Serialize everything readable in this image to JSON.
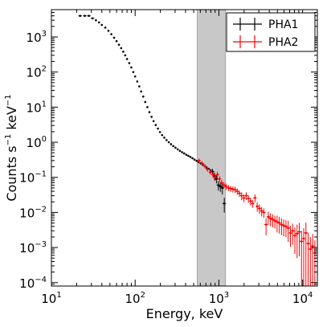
{
  "chart_data": {
    "type": "scatter",
    "title": "",
    "xlabel": "Energy, keV",
    "ylabel_parts": [
      "Counts s",
      "−1",
      " keV",
      "−1"
    ],
    "xscale": "log",
    "yscale": "log",
    "xlim": [
      10,
      15000
    ],
    "ylim": [
      8e-05,
      6000
    ],
    "x_ticks": [
      {
        "base": "10",
        "exp": "1"
      },
      {
        "base": "10",
        "exp": "2"
      },
      {
        "base": "10",
        "exp": "3"
      },
      {
        "base": "10",
        "exp": "4"
      }
    ],
    "y_ticks": [
      {
        "base": "10",
        "exp": "−4"
      },
      {
        "base": "10",
        "exp": "−3"
      },
      {
        "base": "10",
        "exp": "−2"
      },
      {
        "base": "10",
        "exp": "−1"
      },
      {
        "base": "10",
        "exp": "0"
      },
      {
        "base": "10",
        "exp": "1"
      },
      {
        "base": "10",
        "exp": "2"
      },
      {
        "base": "10",
        "exp": "3"
      }
    ],
    "x_tick_values": [
      10,
      100,
      1000,
      10000
    ],
    "y_tick_values": [
      0.0001,
      0.001,
      0.01,
      0.1,
      1,
      10,
      100,
      1000
    ],
    "shaded_band": {
      "x0": 550,
      "x1": 1200,
      "color": "#c8c8c8"
    },
    "legend": {
      "placement": "top-right"
    },
    "series": [
      {
        "name": "PHA1",
        "color": "#000000",
        "points": [
          [
            22,
            4000
          ],
          [
            25,
            4000
          ],
          [
            28,
            4000
          ],
          [
            31,
            3400
          ],
          [
            34,
            3000
          ],
          [
            37,
            2600
          ],
          [
            40,
            2200
          ],
          [
            44,
            1850
          ],
          [
            48,
            1500
          ],
          [
            52,
            1200
          ],
          [
            56,
            950
          ],
          [
            60,
            760
          ],
          [
            64,
            600
          ],
          [
            68,
            480
          ],
          [
            72,
            380
          ],
          [
            76,
            300
          ],
          [
            80,
            235
          ],
          [
            85,
            180
          ],
          [
            90,
            135
          ],
          [
            95,
            100
          ],
          [
            100,
            75
          ],
          [
            106,
            54
          ],
          [
            112,
            39
          ],
          [
            118,
            28
          ],
          [
            125,
            20
          ],
          [
            132,
            14
          ],
          [
            140,
            10
          ],
          [
            148,
            7.2
          ],
          [
            157,
            5.3
          ],
          [
            166,
            4
          ],
          [
            176,
            3.1
          ],
          [
            187,
            2.45
          ],
          [
            198,
            1.95
          ],
          [
            210,
            1.6
          ],
          [
            223,
            1.35
          ],
          [
            237,
            1.15
          ],
          [
            252,
            1
          ],
          [
            268,
            0.88
          ],
          [
            285,
            0.78
          ],
          [
            303,
            0.7
          ],
          [
            322,
            0.63
          ],
          [
            342,
            0.57
          ],
          [
            363,
            0.52
          ],
          [
            385,
            0.48
          ],
          [
            408,
            0.44
          ],
          [
            432,
            0.41
          ],
          [
            457,
            0.38
          ],
          [
            484,
            0.35
          ],
          [
            512,
            0.32
          ],
          [
            542,
            0.295
          ],
          [
            573,
            0.27
          ],
          [
            606,
            0.25
          ],
          [
            640,
            0.23
          ],
          [
            676,
            0.21
          ],
          [
            714,
            0.19
          ],
          [
            754,
            0.175
          ],
          [
            796,
            0.16
          ],
          [
            840,
            0.145
          ],
          [
            887,
            0.11
          ],
          [
            935,
            0.09
          ],
          [
            985,
            0.06
          ],
          [
            1040,
            0.055
          ],
          [
            1100,
            0.05
          ],
          [
            1160,
            0.018
          ]
        ],
        "yerr": [
          [
            22,
            0.04
          ],
          [
            25,
            0.04
          ],
          [
            28,
            0.04
          ],
          [
            31,
            0.04
          ],
          [
            840,
            0.2
          ],
          [
            887,
            0.25
          ],
          [
            935,
            0.25
          ],
          [
            985,
            0.3
          ],
          [
            1040,
            0.3
          ],
          [
            1100,
            0.35
          ],
          [
            1160,
            0.45
          ]
        ]
      },
      {
        "name": "PHA2",
        "color": "#ff0000",
        "points": [
          [
            580,
            0.3
          ],
          [
            630,
            0.25
          ],
          [
            680,
            0.21
          ],
          [
            730,
            0.17
          ],
          [
            790,
            0.14
          ],
          [
            850,
            0.12
          ],
          [
            900,
            0.1
          ],
          [
            960,
            0.12
          ],
          [
            1020,
            0.09
          ],
          [
            1080,
            0.07
          ],
          [
            1150,
            0.06
          ],
          [
            1220,
            0.055
          ],
          [
            1300,
            0.05
          ],
          [
            1380,
            0.048
          ],
          [
            1470,
            0.046
          ],
          [
            1560,
            0.045
          ],
          [
            1660,
            0.04
          ],
          [
            1760,
            0.035
          ],
          [
            1870,
            0.03
          ],
          [
            1990,
            0.026
          ],
          [
            2120,
            0.03
          ],
          [
            2250,
            0.025
          ],
          [
            2390,
            0.021
          ],
          [
            2540,
            0.018
          ],
          [
            2700,
            0.026
          ],
          [
            2870,
            0.015
          ],
          [
            3050,
            0.013
          ],
          [
            3240,
            0.011
          ],
          [
            3440,
            0.01
          ],
          [
            3660,
            0.0045
          ],
          [
            3890,
            0.0075
          ],
          [
            4130,
            0.0068
          ],
          [
            4390,
            0.0063
          ],
          [
            4670,
            0.0058
          ],
          [
            4960,
            0.0054
          ],
          [
            5270,
            0.005
          ],
          [
            5600,
            0.0045
          ],
          [
            5950,
            0.0042
          ],
          [
            6330,
            0.004
          ],
          [
            6730,
            0.0036
          ],
          [
            7150,
            0.0026
          ],
          [
            7600,
            0.003
          ],
          [
            8080,
            0.0022
          ],
          [
            8590,
            0.0025
          ],
          [
            9130,
            0.0028
          ],
          [
            9700,
            0.0015
          ],
          [
            10300,
            0.0018
          ],
          [
            10950,
            0.0026
          ],
          [
            11640,
            0.0013
          ],
          [
            12380,
            0.0009
          ],
          [
            13160,
            0.0011
          ],
          [
            14000,
            0.0007
          ]
        ],
        "yerr": [
          [
            580,
            0.15
          ],
          [
            630,
            0.15
          ],
          [
            680,
            0.15
          ],
          [
            730,
            0.15
          ],
          [
            790,
            0.15
          ],
          [
            850,
            0.2
          ],
          [
            900,
            0.2
          ],
          [
            960,
            0.2
          ],
          [
            1020,
            0.2
          ],
          [
            1080,
            0.2
          ],
          [
            1150,
            0.2
          ],
          [
            1220,
            0.2
          ],
          [
            1300,
            0.2
          ],
          [
            1380,
            0.2
          ],
          [
            1470,
            0.2
          ],
          [
            1560,
            0.2
          ],
          [
            1660,
            0.2
          ],
          [
            1760,
            0.2
          ],
          [
            1870,
            0.25
          ],
          [
            1990,
            0.25
          ],
          [
            2120,
            0.25
          ],
          [
            2250,
            0.25
          ],
          [
            2390,
            0.25
          ],
          [
            2540,
            0.25
          ],
          [
            2700,
            0.25
          ],
          [
            2870,
            0.3
          ],
          [
            3050,
            0.3
          ],
          [
            3240,
            0.3
          ],
          [
            3440,
            0.3
          ],
          [
            3660,
            0.5
          ],
          [
            3890,
            0.4
          ],
          [
            4130,
            0.4
          ],
          [
            4390,
            0.4
          ],
          [
            4670,
            0.4
          ],
          [
            4960,
            0.5
          ],
          [
            5270,
            0.5
          ],
          [
            5600,
            0.5
          ],
          [
            5950,
            0.5
          ],
          [
            6330,
            0.5
          ],
          [
            6730,
            0.6
          ],
          [
            7150,
            0.6
          ],
          [
            7600,
            0.6
          ],
          [
            8080,
            0.7
          ],
          [
            8590,
            0.8
          ],
          [
            9130,
            0.8
          ],
          [
            9700,
            1.0
          ],
          [
            10300,
            1.0
          ],
          [
            10950,
            1.0
          ],
          [
            11640,
            1.0
          ],
          [
            12380,
            1.2
          ],
          [
            13160,
            1.2
          ],
          [
            14000,
            1.3
          ]
        ]
      }
    ]
  }
}
